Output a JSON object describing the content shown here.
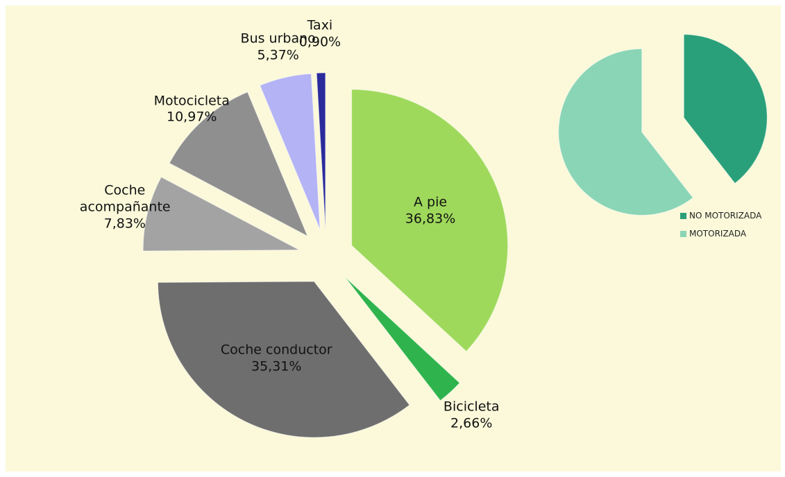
{
  "chart_data": [
    {
      "type": "pie",
      "categories": [
        "A pie",
        "Bicicleta",
        "Coche conductor",
        "Coche acompañante",
        "Motocicleta",
        "Bus urbano",
        "Taxi"
      ],
      "values": [
        36.83,
        2.66,
        35.31,
        7.83,
        10.97,
        5.37,
        0.9
      ],
      "value_labels": [
        "36,83%",
        "2,66%",
        "35,31%",
        "7,83%",
        "10,97%",
        "5,37%",
        "0,90%"
      ],
      "colors": [
        "#9fd95c",
        "#2fb34c",
        "#6e6e6e",
        "#a3a3a3",
        "#8f8f8f",
        "#b3b3f5",
        "#2b2b9c"
      ]
    },
    {
      "type": "pie",
      "categories": [
        "NO MOTORIZADA",
        "MOTORIZADA"
      ],
      "values": [
        39.49,
        60.51
      ],
      "colors": [
        "#2aa07a",
        "#8ad5b6"
      ],
      "legend": "right"
    }
  ]
}
